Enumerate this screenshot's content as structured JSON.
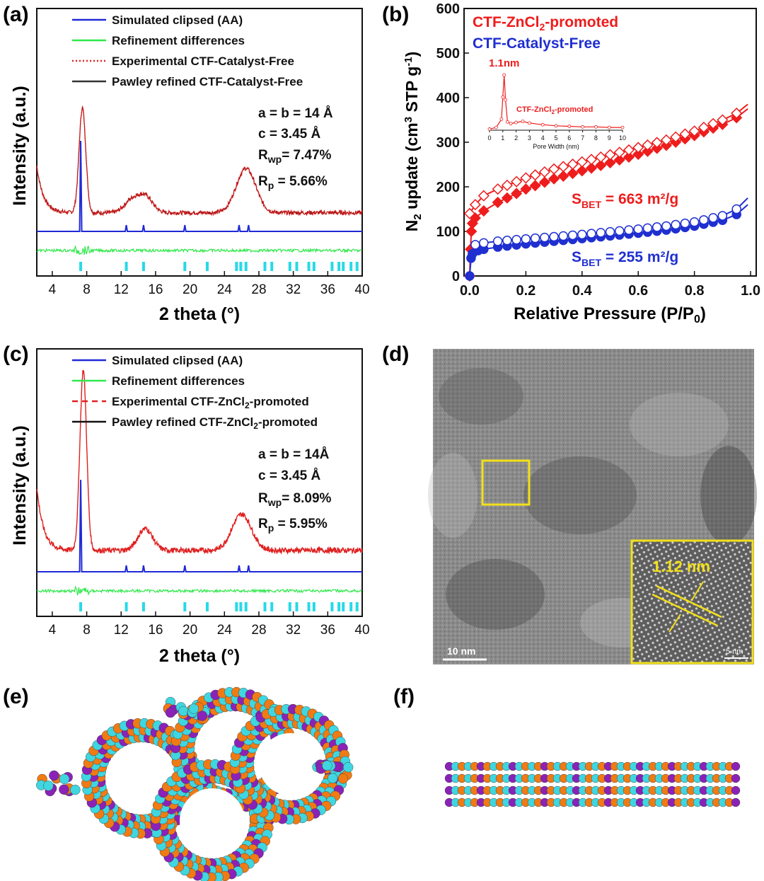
{
  "panels": {
    "a": {
      "label": "(a)"
    },
    "b": {
      "label": "(b)"
    },
    "c": {
      "label": "(c)"
    },
    "d": {
      "label": "(d)"
    },
    "e": {
      "label": "(e)"
    },
    "f": {
      "label": "(f)"
    }
  },
  "colors": {
    "simulated": "#1f2ad6",
    "diff": "#2ee84a",
    "experimental": "#e02020",
    "pawley": "#222222",
    "ticks": "#27d9e8",
    "znc": "#ee1c1c",
    "free": "#1f2fd0",
    "tem_box": "#f2e01a"
  },
  "tem": {
    "inset_label": "1.12 nm",
    "scale_main": "10 nm",
    "scale_inset": "5 nm"
  },
  "chart_data": [
    {
      "id": "a",
      "type": "line",
      "title": "",
      "xlabel": "2 theta (°)",
      "ylabel": "Intensity (a.u.)",
      "xlim": [
        2.2,
        40
      ],
      "xticks": [
        4,
        8,
        12,
        16,
        20,
        24,
        28,
        32,
        36,
        40
      ],
      "legend": [
        {
          "name": "Simulated clipsed (AA)",
          "style": "solid",
          "color": "#1f2ad6"
        },
        {
          "name": "Refinement differences",
          "style": "solid",
          "color": "#2ee84a"
        },
        {
          "name": "Experimental CTF-Catalyst-Free",
          "style": "dotted",
          "color": "#e02020"
        },
        {
          "name": "Pawley refined CTF-Catalyst-Free",
          "style": "solid",
          "color": "#333333"
        }
      ],
      "legend_position": "top",
      "annotations": [
        "a = b = 14 Å",
        "c = 3.45 Å",
        "R",
        "wp",
        "= 7.47%",
        "R",
        "p",
        " = 5.66%"
      ],
      "experimental_peaks": [
        {
          "x": 7.5,
          "h": 0.78
        },
        {
          "x": 13.2,
          "h": 0.09
        },
        {
          "x": 14.8,
          "h": 0.12
        },
        {
          "x": 26.5,
          "h": 0.33
        }
      ],
      "simulated_peaks": [
        7.3,
        12.6,
        14.6,
        19.4,
        25.7,
        26.8
      ],
      "bragg_ticks": [
        7.3,
        12.6,
        14.6,
        19.4,
        22.0,
        25.4,
        25.9,
        26.5,
        28.7,
        29.5,
        31.6,
        32.4,
        33.8,
        34.4,
        36.5,
        37.3,
        37.8,
        38.7,
        39.4
      ]
    },
    {
      "id": "b",
      "type": "scatter",
      "title": "",
      "xlabel": "Relative Pressure (P/P0)",
      "ylabel": "N2 update (cm3 STP g-1)",
      "xlim": [
        -0.02,
        1.02
      ],
      "ylim": [
        0,
        600
      ],
      "xticks": [
        0.0,
        0.2,
        0.4,
        0.6,
        0.8,
        1.0
      ],
      "yticks": [
        0,
        100,
        200,
        300,
        400,
        500,
        600
      ],
      "legend": [
        {
          "name": "CTF-ZnCl2-promoted",
          "color": "#ee1c1c"
        },
        {
          "name": "CTF-Catalyst-Free",
          "color": "#1f2fd0"
        }
      ],
      "legend_position": "top-left",
      "annotations": {
        "bet_znc": "663 m²/g",
        "bet_free": "255 m²/g",
        "s_text": "S",
        "s_sub": "BET",
        "s_eq": " = "
      },
      "series": [
        {
          "name": "CTF-ZnCl2-promoted adsorption",
          "marker": "filled-diamond",
          "x": [
            0.0,
            0.003,
            0.006,
            0.01,
            0.02,
            0.05,
            0.1,
            0.2,
            0.3,
            0.4,
            0.5,
            0.6,
            0.7,
            0.8,
            0.9,
            0.95,
            0.99
          ],
          "y": [
            0,
            60,
            100,
            118,
            130,
            146,
            165,
            195,
            218,
            236,
            254,
            273,
            293,
            315,
            340,
            355,
            375
          ]
        },
        {
          "name": "CTF-ZnCl2-promoted desorption",
          "marker": "open-diamond",
          "x": [
            0.0,
            0.02,
            0.05,
            0.1,
            0.2,
            0.3,
            0.4,
            0.5,
            0.6,
            0.7,
            0.8,
            0.9,
            0.95,
            0.99
          ],
          "y": [
            140,
            160,
            180,
            195,
            220,
            240,
            256,
            272,
            288,
            305,
            325,
            350,
            365,
            385
          ]
        },
        {
          "name": "CTF-Catalyst-Free adsorption",
          "marker": "filled-circle",
          "x": [
            0.0,
            0.005,
            0.01,
            0.03,
            0.05,
            0.1,
            0.2,
            0.3,
            0.4,
            0.5,
            0.6,
            0.7,
            0.8,
            0.9,
            0.95,
            0.99
          ],
          "y": [
            0,
            40,
            50,
            57,
            60,
            65,
            72,
            78,
            84,
            90,
            96,
            103,
            112,
            125,
            138,
            160
          ]
        },
        {
          "name": "CTF-Catalyst-Free desorption",
          "marker": "open-circle",
          "x": [
            0.02,
            0.05,
            0.1,
            0.2,
            0.3,
            0.4,
            0.5,
            0.6,
            0.7,
            0.8,
            0.9,
            0.95,
            0.99
          ],
          "y": [
            70,
            74,
            78,
            83,
            88,
            93,
            99,
            105,
            112,
            121,
            135,
            150,
            175
          ]
        }
      ],
      "inset": {
        "type": "line",
        "title": "CTF-ZnCl2-promoted",
        "peak_label": "1.1nm",
        "xlabel": "Pore Width (nm)",
        "xlim": [
          0,
          10
        ],
        "xticks": [
          0,
          1,
          2,
          3,
          4,
          5,
          6,
          7,
          8,
          9,
          10
        ],
        "x": [
          0,
          0.5,
          0.9,
          1.0,
          1.1,
          1.2,
          1.35,
          1.6,
          2,
          2.5,
          3,
          4,
          5,
          6,
          7,
          8,
          9,
          10
        ],
        "y": [
          0.02,
          0.05,
          0.2,
          0.6,
          1.0,
          0.55,
          0.15,
          0.12,
          0.14,
          0.16,
          0.13,
          0.1,
          0.08,
          0.07,
          0.06,
          0.06,
          0.05,
          0.05
        ]
      }
    },
    {
      "id": "c",
      "type": "line",
      "title": "",
      "xlabel": "2 theta (°)",
      "ylabel": "Intensity (a.u.)",
      "xlim": [
        2.2,
        40
      ],
      "xticks": [
        4,
        8,
        12,
        16,
        20,
        24,
        28,
        32,
        36,
        40
      ],
      "legend": [
        {
          "name": "Simulated clipsed (AA)",
          "style": "solid",
          "color": "#1f2ad6"
        },
        {
          "name": "Refinement differences",
          "style": "solid",
          "color": "#2ee84a"
        },
        {
          "name": "Experimental CTF-ZnCl2-promoted",
          "style": "dashed",
          "color": "#e02020"
        },
        {
          "name": "Pawley refined CTF-ZnCl2-promoted",
          "style": "solid",
          "color": "#111111"
        }
      ],
      "legend_position": "top",
      "annotations": [
        "a = b = 14Å",
        "c = 3.45 Å",
        "R",
        "wp",
        "= 8.09%",
        "R",
        "p",
        " = 5.95%"
      ],
      "experimental_peaks": [
        {
          "x": 7.6,
          "h": 1.0
        },
        {
          "x": 14.8,
          "h": 0.12
        },
        {
          "x": 26.0,
          "h": 0.2
        }
      ],
      "simulated_peaks": [
        7.3,
        12.6,
        14.6,
        19.4,
        25.7,
        26.8
      ],
      "bragg_ticks": [
        7.3,
        12.6,
        14.6,
        19.4,
        22.0,
        25.4,
        25.9,
        26.5,
        28.7,
        29.5,
        31.6,
        32.4,
        33.8,
        34.4,
        36.5,
        37.3,
        37.8,
        38.7,
        39.4
      ]
    }
  ]
}
